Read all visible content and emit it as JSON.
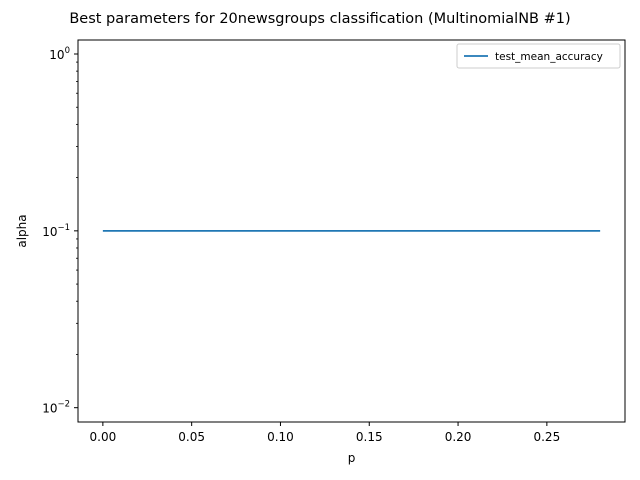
{
  "chart_data": {
    "type": "line",
    "title": "Best parameters for 20newsgroups classification (MultinomialNB #1)",
    "xlabel": "p",
    "ylabel": "alpha",
    "yscale": "log",
    "xlim": [
      -0.014,
      0.294
    ],
    "ylim": [
      0.0083,
      1.2
    ],
    "xticks": [
      {
        "value": 0.0,
        "label": "0.00"
      },
      {
        "value": 0.05,
        "label": "0.05"
      },
      {
        "value": 0.1,
        "label": "0.10"
      },
      {
        "value": 0.15,
        "label": "0.15"
      },
      {
        "value": 0.2,
        "label": "0.20"
      },
      {
        "value": 0.25,
        "label": "0.25"
      }
    ],
    "yticks": [
      {
        "value": 0.01,
        "base": "10",
        "exp": "−2"
      },
      {
        "value": 0.1,
        "base": "10",
        "exp": "−1"
      },
      {
        "value": 1,
        "base": "10",
        "exp": "0"
      }
    ],
    "grid": false,
    "legend_position": "top-right",
    "series": [
      {
        "name": "test_mean_accuracy",
        "color": "#1f77b4",
        "x": [
          0.0,
          0.28
        ],
        "y": [
          0.1,
          0.1
        ]
      }
    ]
  }
}
